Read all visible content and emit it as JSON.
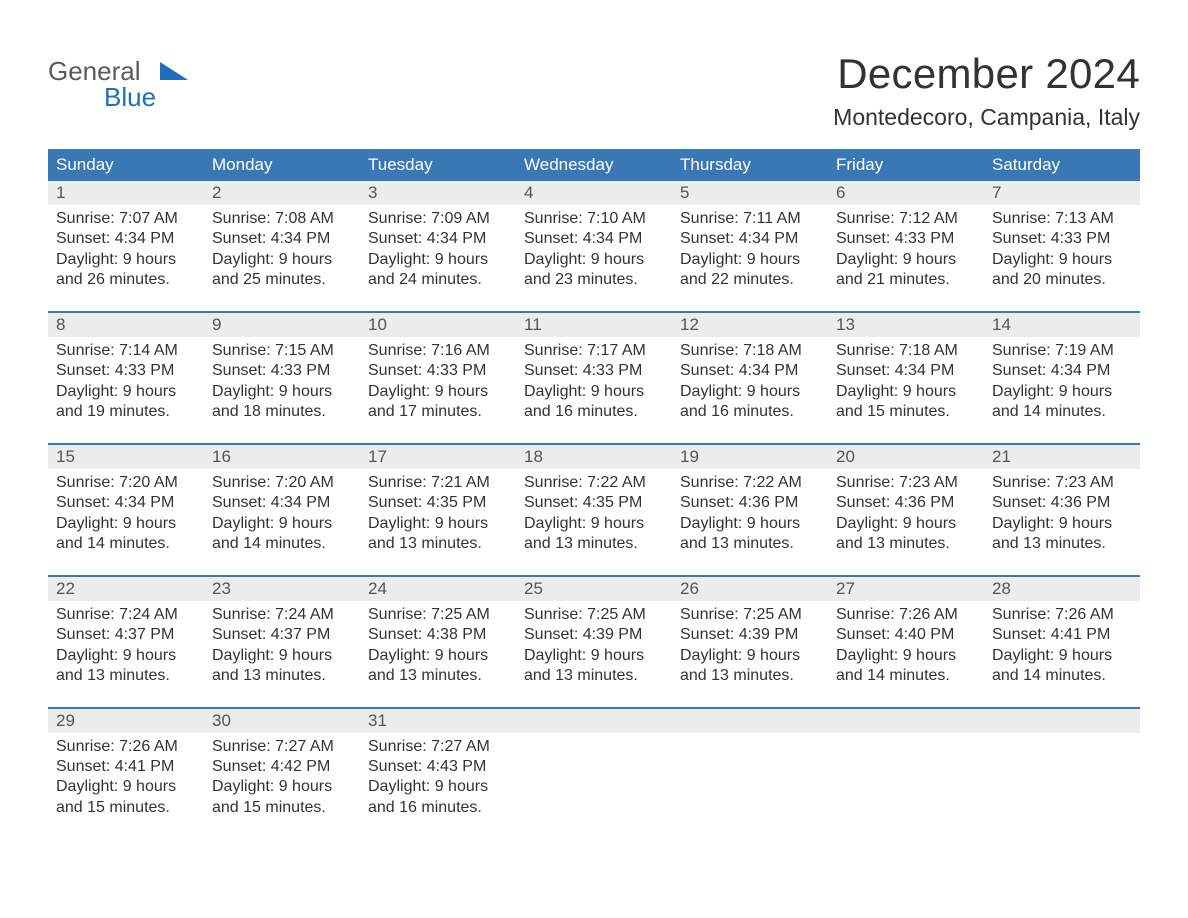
{
  "logo": {
    "text_general": "General",
    "text_blue": "Blue",
    "color_gray": "#5b5b5b",
    "color_blue": "#1e6fb8",
    "bar_color": "#1e6fb8"
  },
  "header": {
    "month": "December 2024",
    "location": "Montedecoro, Campania, Italy"
  },
  "style": {
    "header_bg": "#3a78b5",
    "header_text": "#ffffff",
    "daynum_bg": "#ececec",
    "daynum_text": "#555555",
    "body_text": "#333333",
    "week_border": "#3a78b5",
    "page_bg": "#ffffff",
    "body_fontsize": 16,
    "header_fontsize": 17,
    "month_fontsize": 42,
    "location_fontsize": 23
  },
  "day_headers": [
    "Sunday",
    "Monday",
    "Tuesday",
    "Wednesday",
    "Thursday",
    "Friday",
    "Saturday"
  ],
  "weeks": [
    [
      {
        "n": "1",
        "sunrise": "Sunrise: 7:07 AM",
        "sunset": "Sunset: 4:34 PM",
        "d1": "Daylight: 9 hours",
        "d2": "and 26 minutes."
      },
      {
        "n": "2",
        "sunrise": "Sunrise: 7:08 AM",
        "sunset": "Sunset: 4:34 PM",
        "d1": "Daylight: 9 hours",
        "d2": "and 25 minutes."
      },
      {
        "n": "3",
        "sunrise": "Sunrise: 7:09 AM",
        "sunset": "Sunset: 4:34 PM",
        "d1": "Daylight: 9 hours",
        "d2": "and 24 minutes."
      },
      {
        "n": "4",
        "sunrise": "Sunrise: 7:10 AM",
        "sunset": "Sunset: 4:34 PM",
        "d1": "Daylight: 9 hours",
        "d2": "and 23 minutes."
      },
      {
        "n": "5",
        "sunrise": "Sunrise: 7:11 AM",
        "sunset": "Sunset: 4:34 PM",
        "d1": "Daylight: 9 hours",
        "d2": "and 22 minutes."
      },
      {
        "n": "6",
        "sunrise": "Sunrise: 7:12 AM",
        "sunset": "Sunset: 4:33 PM",
        "d1": "Daylight: 9 hours",
        "d2": "and 21 minutes."
      },
      {
        "n": "7",
        "sunrise": "Sunrise: 7:13 AM",
        "sunset": "Sunset: 4:33 PM",
        "d1": "Daylight: 9 hours",
        "d2": "and 20 minutes."
      }
    ],
    [
      {
        "n": "8",
        "sunrise": "Sunrise: 7:14 AM",
        "sunset": "Sunset: 4:33 PM",
        "d1": "Daylight: 9 hours",
        "d2": "and 19 minutes."
      },
      {
        "n": "9",
        "sunrise": "Sunrise: 7:15 AM",
        "sunset": "Sunset: 4:33 PM",
        "d1": "Daylight: 9 hours",
        "d2": "and 18 minutes."
      },
      {
        "n": "10",
        "sunrise": "Sunrise: 7:16 AM",
        "sunset": "Sunset: 4:33 PM",
        "d1": "Daylight: 9 hours",
        "d2": "and 17 minutes."
      },
      {
        "n": "11",
        "sunrise": "Sunrise: 7:17 AM",
        "sunset": "Sunset: 4:33 PM",
        "d1": "Daylight: 9 hours",
        "d2": "and 16 minutes."
      },
      {
        "n": "12",
        "sunrise": "Sunrise: 7:18 AM",
        "sunset": "Sunset: 4:34 PM",
        "d1": "Daylight: 9 hours",
        "d2": "and 16 minutes."
      },
      {
        "n": "13",
        "sunrise": "Sunrise: 7:18 AM",
        "sunset": "Sunset: 4:34 PM",
        "d1": "Daylight: 9 hours",
        "d2": "and 15 minutes."
      },
      {
        "n": "14",
        "sunrise": "Sunrise: 7:19 AM",
        "sunset": "Sunset: 4:34 PM",
        "d1": "Daylight: 9 hours",
        "d2": "and 14 minutes."
      }
    ],
    [
      {
        "n": "15",
        "sunrise": "Sunrise: 7:20 AM",
        "sunset": "Sunset: 4:34 PM",
        "d1": "Daylight: 9 hours",
        "d2": "and 14 minutes."
      },
      {
        "n": "16",
        "sunrise": "Sunrise: 7:20 AM",
        "sunset": "Sunset: 4:34 PM",
        "d1": "Daylight: 9 hours",
        "d2": "and 14 minutes."
      },
      {
        "n": "17",
        "sunrise": "Sunrise: 7:21 AM",
        "sunset": "Sunset: 4:35 PM",
        "d1": "Daylight: 9 hours",
        "d2": "and 13 minutes."
      },
      {
        "n": "18",
        "sunrise": "Sunrise: 7:22 AM",
        "sunset": "Sunset: 4:35 PM",
        "d1": "Daylight: 9 hours",
        "d2": "and 13 minutes."
      },
      {
        "n": "19",
        "sunrise": "Sunrise: 7:22 AM",
        "sunset": "Sunset: 4:36 PM",
        "d1": "Daylight: 9 hours",
        "d2": "and 13 minutes."
      },
      {
        "n": "20",
        "sunrise": "Sunrise: 7:23 AM",
        "sunset": "Sunset: 4:36 PM",
        "d1": "Daylight: 9 hours",
        "d2": "and 13 minutes."
      },
      {
        "n": "21",
        "sunrise": "Sunrise: 7:23 AM",
        "sunset": "Sunset: 4:36 PM",
        "d1": "Daylight: 9 hours",
        "d2": "and 13 minutes."
      }
    ],
    [
      {
        "n": "22",
        "sunrise": "Sunrise: 7:24 AM",
        "sunset": "Sunset: 4:37 PM",
        "d1": "Daylight: 9 hours",
        "d2": "and 13 minutes."
      },
      {
        "n": "23",
        "sunrise": "Sunrise: 7:24 AM",
        "sunset": "Sunset: 4:37 PM",
        "d1": "Daylight: 9 hours",
        "d2": "and 13 minutes."
      },
      {
        "n": "24",
        "sunrise": "Sunrise: 7:25 AM",
        "sunset": "Sunset: 4:38 PM",
        "d1": "Daylight: 9 hours",
        "d2": "and 13 minutes."
      },
      {
        "n": "25",
        "sunrise": "Sunrise: 7:25 AM",
        "sunset": "Sunset: 4:39 PM",
        "d1": "Daylight: 9 hours",
        "d2": "and 13 minutes."
      },
      {
        "n": "26",
        "sunrise": "Sunrise: 7:25 AM",
        "sunset": "Sunset: 4:39 PM",
        "d1": "Daylight: 9 hours",
        "d2": "and 13 minutes."
      },
      {
        "n": "27",
        "sunrise": "Sunrise: 7:26 AM",
        "sunset": "Sunset: 4:40 PM",
        "d1": "Daylight: 9 hours",
        "d2": "and 14 minutes."
      },
      {
        "n": "28",
        "sunrise": "Sunrise: 7:26 AM",
        "sunset": "Sunset: 4:41 PM",
        "d1": "Daylight: 9 hours",
        "d2": "and 14 minutes."
      }
    ],
    [
      {
        "n": "29",
        "sunrise": "Sunrise: 7:26 AM",
        "sunset": "Sunset: 4:41 PM",
        "d1": "Daylight: 9 hours",
        "d2": "and 15 minutes."
      },
      {
        "n": "30",
        "sunrise": "Sunrise: 7:27 AM",
        "sunset": "Sunset: 4:42 PM",
        "d1": "Daylight: 9 hours",
        "d2": "and 15 minutes."
      },
      {
        "n": "31",
        "sunrise": "Sunrise: 7:27 AM",
        "sunset": "Sunset: 4:43 PM",
        "d1": "Daylight: 9 hours",
        "d2": "and 16 minutes."
      },
      null,
      null,
      null,
      null
    ]
  ]
}
